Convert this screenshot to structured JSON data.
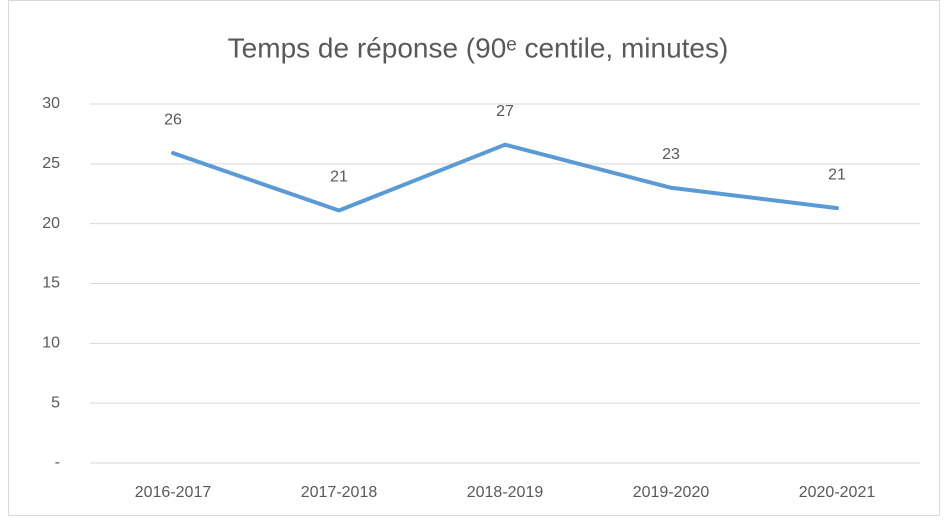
{
  "chart_data": {
    "type": "line",
    "title": "Temps de réponse (90ᵉ centile, minutes)",
    "categories": [
      "2016-2017",
      "2017-2018",
      "2018-2019",
      "2019-2020",
      "2020-2021"
    ],
    "series": [
      {
        "color": "#5b9bd5",
        "values": [
          25.9,
          21.1,
          26.6,
          23.0,
          21.3
        ],
        "value_labels": [
          "26",
          "21",
          "27",
          "23",
          "21"
        ]
      }
    ],
    "ylim": [
      0,
      30
    ],
    "yticks": [
      {
        "value": 0,
        "label": "-"
      },
      5,
      10,
      15,
      20,
      25,
      30
    ],
    "grid": true
  }
}
